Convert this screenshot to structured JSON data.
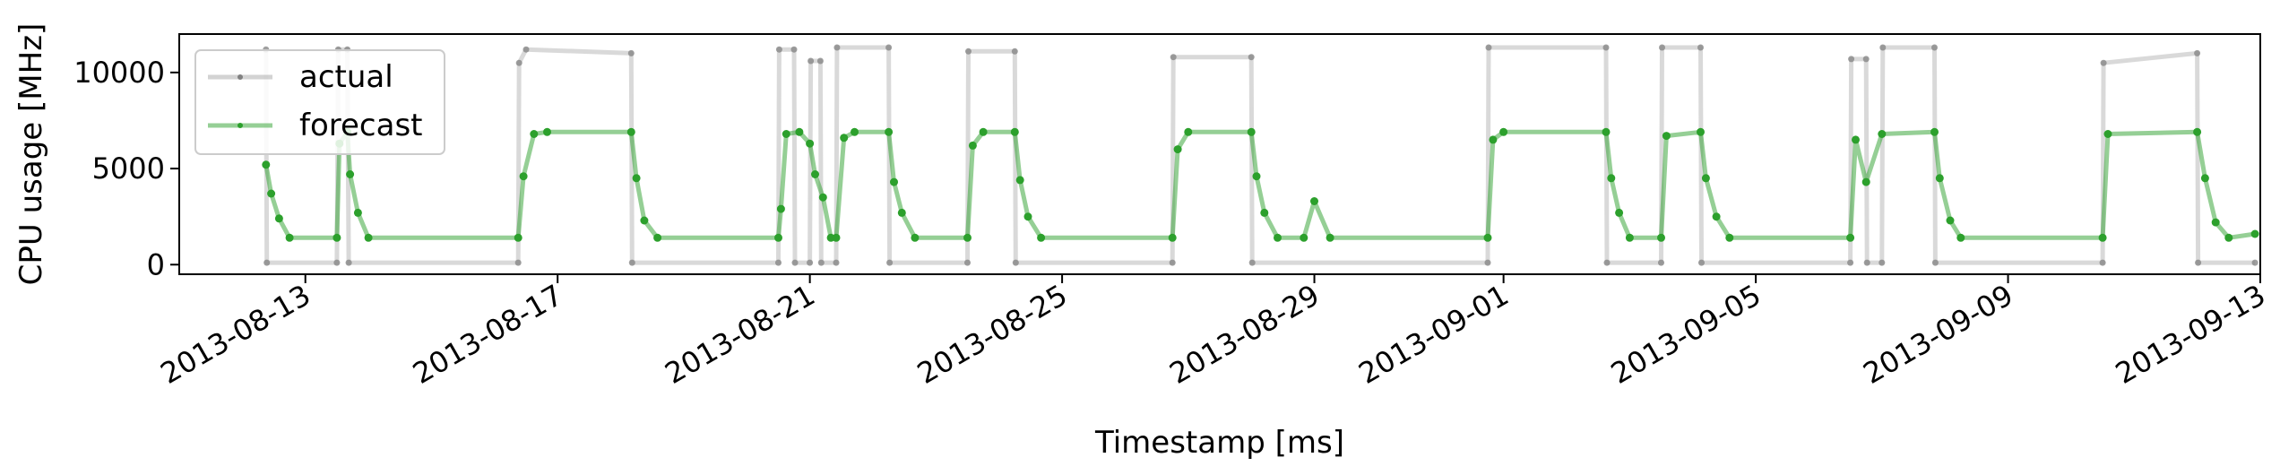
{
  "chart_data": {
    "type": "line",
    "title": "",
    "xlabel": "Timestamp [ms]",
    "ylabel": "CPU usage [MHz]",
    "xlim": [
      "2013-08-11T00:00:00",
      "2013-09-13T00:00:00"
    ],
    "ylim": [
      -500,
      12000
    ],
    "x_ticks": [
      "2013-08-13",
      "2013-08-17",
      "2013-08-21",
      "2013-08-25",
      "2013-08-29",
      "2013-09-01",
      "2013-09-05",
      "2013-09-09",
      "2013-09-13"
    ],
    "y_ticks": [
      0,
      5000,
      10000
    ],
    "y_tick_labels": [
      "0",
      "5000",
      "10000"
    ],
    "grid": false,
    "legend": {
      "position": "top-left",
      "entries": [
        "actual",
        "forecast"
      ]
    },
    "series": [
      {
        "name": "actual",
        "color": "#808080",
        "points": [
          [
            "2013-08-12T09:00:00",
            11200
          ],
          [
            "2013-08-12T09:20:00",
            100
          ],
          [
            "2013-08-13T12:00:00",
            100
          ],
          [
            "2013-08-13T12:30:00",
            11200
          ],
          [
            "2013-08-13T16:00:00",
            11200
          ],
          [
            "2013-08-13T16:30:00",
            100
          ],
          [
            "2013-08-16T09:00:00",
            100
          ],
          [
            "2013-08-16T09:20:00",
            10500
          ],
          [
            "2013-08-16T12:00:00",
            11200
          ],
          [
            "2013-08-18T04:00:00",
            11000
          ],
          [
            "2013-08-18T04:20:00",
            100
          ],
          [
            "2013-08-20T12:00:00",
            100
          ],
          [
            "2013-08-20T12:20:00",
            11200
          ],
          [
            "2013-08-20T18:00:00",
            11200
          ],
          [
            "2013-08-20T18:20:00",
            100
          ],
          [
            "2013-08-21T00:00:00",
            100
          ],
          [
            "2013-08-21T00:20:00",
            10600
          ],
          [
            "2013-08-21T04:00:00",
            10600
          ],
          [
            "2013-08-21T04:20:00",
            100
          ],
          [
            "2013-08-21T10:00:00",
            100
          ],
          [
            "2013-08-21T10:20:00",
            11300
          ],
          [
            "2013-08-22T06:00:00",
            11300
          ],
          [
            "2013-08-22T06:20:00",
            100
          ],
          [
            "2013-08-23T12:00:00",
            100
          ],
          [
            "2013-08-23T12:20:00",
            11100
          ],
          [
            "2013-08-24T06:00:00",
            11100
          ],
          [
            "2013-08-24T06:20:00",
            100
          ],
          [
            "2013-08-26T18:00:00",
            100
          ],
          [
            "2013-08-26T18:20:00",
            10800
          ],
          [
            "2013-08-28T00:00:00",
            10800
          ],
          [
            "2013-08-28T00:20:00",
            100
          ],
          [
            "2013-08-31T18:00:00",
            100
          ],
          [
            "2013-08-31T18:20:00",
            11300
          ],
          [
            "2013-09-02T15:00:00",
            11300
          ],
          [
            "2013-09-02T15:20:00",
            100
          ],
          [
            "2013-09-03T12:00:00",
            100
          ],
          [
            "2013-09-03T12:20:00",
            11300
          ],
          [
            "2013-09-04T03:00:00",
            11300
          ],
          [
            "2013-09-04T03:20:00",
            100
          ],
          [
            "2013-09-06T12:00:00",
            100
          ],
          [
            "2013-09-06T12:20:00",
            10700
          ],
          [
            "2013-09-06T18:00:00",
            10700
          ],
          [
            "2013-09-06T18:20:00",
            100
          ],
          [
            "2013-09-07T00:00:00",
            100
          ],
          [
            "2013-09-07T00:20:00",
            11300
          ],
          [
            "2013-09-07T20:00:00",
            11300
          ],
          [
            "2013-09-07T20:20:00",
            100
          ],
          [
            "2013-09-10T12:00:00",
            100
          ],
          [
            "2013-09-10T12:20:00",
            10500
          ],
          [
            "2013-09-12T00:00:00",
            11000
          ],
          [
            "2013-09-12T00:20:00",
            100
          ],
          [
            "2013-09-12T22:00:00",
            100
          ]
        ]
      },
      {
        "name": "forecast",
        "color": "#2ca02c",
        "points": [
          [
            "2013-08-12T09:00:00",
            5200
          ],
          [
            "2013-08-12T11:00:00",
            3700
          ],
          [
            "2013-08-12T14:00:00",
            2400
          ],
          [
            "2013-08-12T18:00:00",
            1400
          ],
          [
            "2013-08-13T12:00:00",
            1400
          ],
          [
            "2013-08-13T13:00:00",
            6300
          ],
          [
            "2013-08-13T16:00:00",
            6900
          ],
          [
            "2013-08-13T17:00:00",
            4700
          ],
          [
            "2013-08-13T20:00:00",
            2700
          ],
          [
            "2013-08-14T00:00:00",
            1400
          ],
          [
            "2013-08-16T09:00:00",
            1400
          ],
          [
            "2013-08-16T11:00:00",
            4600
          ],
          [
            "2013-08-16T15:00:00",
            6800
          ],
          [
            "2013-08-16T20:00:00",
            6900
          ],
          [
            "2013-08-18T04:00:00",
            6900
          ],
          [
            "2013-08-18T06:00:00",
            4500
          ],
          [
            "2013-08-18T09:00:00",
            2300
          ],
          [
            "2013-08-18T14:00:00",
            1400
          ],
          [
            "2013-08-20T12:00:00",
            1400
          ],
          [
            "2013-08-20T13:00:00",
            2900
          ],
          [
            "2013-08-20T15:00:00",
            6800
          ],
          [
            "2013-08-20T20:00:00",
            6900
          ],
          [
            "2013-08-21T00:00:00",
            6300
          ],
          [
            "2013-08-21T02:00:00",
            4700
          ],
          [
            "2013-08-21T05:00:00",
            3500
          ],
          [
            "2013-08-21T08:00:00",
            1400
          ],
          [
            "2013-08-21T10:00:00",
            1400
          ],
          [
            "2013-08-21T13:00:00",
            6600
          ],
          [
            "2013-08-21T17:00:00",
            6900
          ],
          [
            "2013-08-22T06:00:00",
            6900
          ],
          [
            "2013-08-22T08:00:00",
            4300
          ],
          [
            "2013-08-22T11:00:00",
            2700
          ],
          [
            "2013-08-22T16:00:00",
            1400
          ],
          [
            "2013-08-23T12:00:00",
            1400
          ],
          [
            "2013-08-23T14:00:00",
            6200
          ],
          [
            "2013-08-23T18:00:00",
            6900
          ],
          [
            "2013-08-24T06:00:00",
            6900
          ],
          [
            "2013-08-24T08:00:00",
            4400
          ],
          [
            "2013-08-24T11:00:00",
            2500
          ],
          [
            "2013-08-24T16:00:00",
            1400
          ],
          [
            "2013-08-26T18:00:00",
            1400
          ],
          [
            "2013-08-26T20:00:00",
            6000
          ],
          [
            "2013-08-27T00:00:00",
            6900
          ],
          [
            "2013-08-28T00:00:00",
            6900
          ],
          [
            "2013-08-28T02:00:00",
            4600
          ],
          [
            "2013-08-28T05:00:00",
            2700
          ],
          [
            "2013-08-28T10:00:00",
            1400
          ],
          [
            "2013-08-28T20:00:00",
            1400
          ],
          [
            "2013-08-29T00:00:00",
            3300
          ],
          [
            "2013-08-29T06:00:00",
            1400
          ],
          [
            "2013-08-31T18:00:00",
            1400
          ],
          [
            "2013-08-31T20:00:00",
            6500
          ],
          [
            "2013-09-01T00:00:00",
            6900
          ],
          [
            "2013-09-02T15:00:00",
            6900
          ],
          [
            "2013-09-02T17:00:00",
            4500
          ],
          [
            "2013-09-02T20:00:00",
            2700
          ],
          [
            "2013-09-03T00:00:00",
            1400
          ],
          [
            "2013-09-03T12:00:00",
            1400
          ],
          [
            "2013-09-03T14:00:00",
            6700
          ],
          [
            "2013-09-04T03:00:00",
            6900
          ],
          [
            "2013-09-04T05:00:00",
            4500
          ],
          [
            "2013-09-04T09:00:00",
            2500
          ],
          [
            "2013-09-04T14:00:00",
            1400
          ],
          [
            "2013-09-06T12:00:00",
            1400
          ],
          [
            "2013-09-06T14:00:00",
            6500
          ],
          [
            "2013-09-06T18:00:00",
            4300
          ],
          [
            "2013-09-07T00:00:00",
            6800
          ],
          [
            "2013-09-07T20:00:00",
            6900
          ],
          [
            "2013-09-07T22:00:00",
            4500
          ],
          [
            "2013-09-08T02:00:00",
            2300
          ],
          [
            "2013-09-08T06:00:00",
            1400
          ],
          [
            "2013-09-10T12:00:00",
            1400
          ],
          [
            "2013-09-10T14:00:00",
            6800
          ],
          [
            "2013-09-12T00:00:00",
            6900
          ],
          [
            "2013-09-12T03:00:00",
            4500
          ],
          [
            "2013-09-12T07:00:00",
            2200
          ],
          [
            "2013-09-12T12:00:00",
            1400
          ],
          [
            "2013-09-12T22:00:00",
            1600
          ]
        ]
      }
    ]
  }
}
